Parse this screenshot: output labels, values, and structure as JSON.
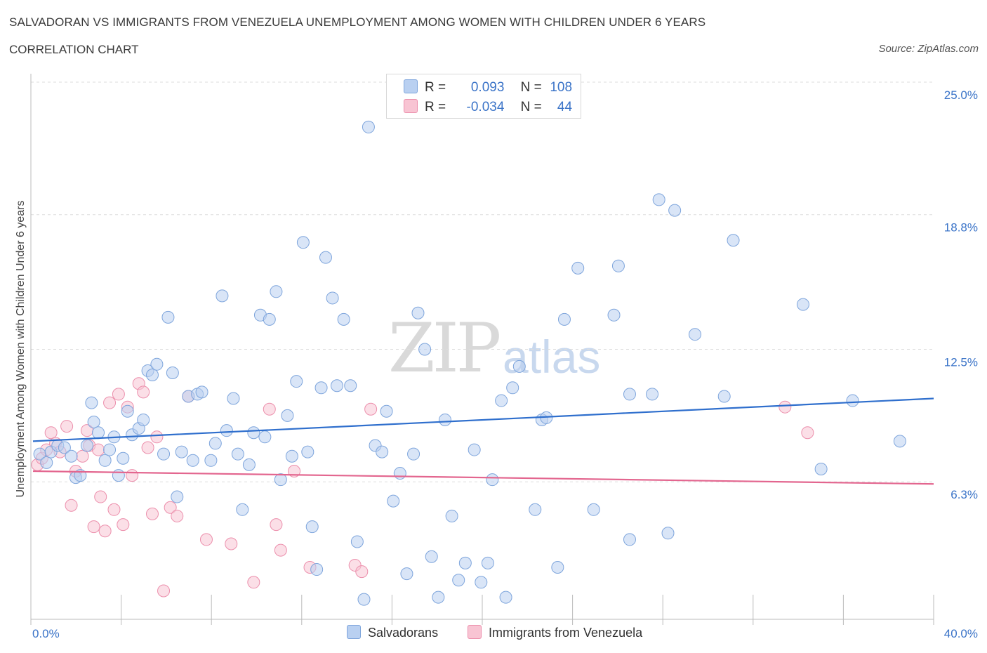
{
  "header": {
    "title": "SALVADORAN VS IMMIGRANTS FROM VENEZUELA UNEMPLOYMENT AMONG WOMEN WITH CHILDREN UNDER 6 YEARS",
    "subtitle": "CORRELATION CHART",
    "source": "Source: ZipAtlas.com"
  },
  "watermark": {
    "zip": "ZIP",
    "atlas": "atlas"
  },
  "legend": {
    "rows": [
      {
        "r_label": "R =",
        "r_value": "0.093",
        "n_label": "N =",
        "n_value": "108",
        "color": "#a8c6ef"
      },
      {
        "r_label": "R =",
        "r_value": "-0.034",
        "n_label": "N =",
        "n_value": "44",
        "color": "#f6b8cb"
      }
    ]
  },
  "bottom_legend": {
    "salvadorans": "Salvadorans",
    "venezuela": "Immigrants from Venezuela"
  },
  "colors": {
    "blue_fill": "#b9d0f1",
    "blue_stroke": "#7ea5dc",
    "blue_line": "#2f6fcd",
    "pink_fill": "#f8c4d3",
    "pink_stroke": "#ec8fac",
    "pink_line": "#e3668f",
    "tick_text": "#3b74c8"
  },
  "chart_data": {
    "type": "scatter",
    "xlabel": "",
    "ylabel": "Unemployment Among Women with Children Under 6 years",
    "xlim": [
      0,
      40
    ],
    "ylim": [
      0,
      25
    ],
    "x_tick_labels": [
      "0.0%",
      "40.0%"
    ],
    "y_ticks": [
      6.3,
      12.5,
      18.8,
      25.0
    ],
    "y_tick_labels": [
      "6.3%",
      "12.5%",
      "18.8%",
      "25.0%"
    ],
    "grid": true,
    "legend_position": "top-center",
    "series": [
      {
        "name": "Salvadorans",
        "r": 0.093,
        "n": 108,
        "trend": [
          [
            0,
            8.2
          ],
          [
            40,
            10.2
          ]
        ],
        "points": [
          [
            0.3,
            7.6
          ],
          [
            0.6,
            7.2
          ],
          [
            0.8,
            7.7
          ],
          [
            1.1,
            8.0
          ],
          [
            1.4,
            7.9
          ],
          [
            1.7,
            7.5
          ],
          [
            1.9,
            6.5
          ],
          [
            2.1,
            6.6
          ],
          [
            2.4,
            8.0
          ],
          [
            2.6,
            10.0
          ],
          [
            2.7,
            9.1
          ],
          [
            2.9,
            8.6
          ],
          [
            3.2,
            7.3
          ],
          [
            3.4,
            7.8
          ],
          [
            3.6,
            8.4
          ],
          [
            3.8,
            6.6
          ],
          [
            4.0,
            7.4
          ],
          [
            4.2,
            9.6
          ],
          [
            4.4,
            8.5
          ],
          [
            4.7,
            8.8
          ],
          [
            4.9,
            9.2
          ],
          [
            5.1,
            11.5
          ],
          [
            5.3,
            11.3
          ],
          [
            5.5,
            11.8
          ],
          [
            5.8,
            7.6
          ],
          [
            6.0,
            14.0
          ],
          [
            6.2,
            11.4
          ],
          [
            6.4,
            5.6
          ],
          [
            6.6,
            7.7
          ],
          [
            6.9,
            10.3
          ],
          [
            7.1,
            7.3
          ],
          [
            7.3,
            10.4
          ],
          [
            7.5,
            10.5
          ],
          [
            7.9,
            7.3
          ],
          [
            8.1,
            8.1
          ],
          [
            8.4,
            15.0
          ],
          [
            8.6,
            8.7
          ],
          [
            8.9,
            10.2
          ],
          [
            9.1,
            7.6
          ],
          [
            9.3,
            5.0
          ],
          [
            9.6,
            7.1
          ],
          [
            9.8,
            8.6
          ],
          [
            10.1,
            14.1
          ],
          [
            10.3,
            8.4
          ],
          [
            10.5,
            13.9
          ],
          [
            10.8,
            15.2
          ],
          [
            11.0,
            6.4
          ],
          [
            11.3,
            9.4
          ],
          [
            11.5,
            7.5
          ],
          [
            11.7,
            11.0
          ],
          [
            12.0,
            17.5
          ],
          [
            12.2,
            7.7
          ],
          [
            12.4,
            4.2
          ],
          [
            12.6,
            2.2
          ],
          [
            12.8,
            10.7
          ],
          [
            13.0,
            16.8
          ],
          [
            13.3,
            14.9
          ],
          [
            13.5,
            10.8
          ],
          [
            13.8,
            13.9
          ],
          [
            14.1,
            10.8
          ],
          [
            14.4,
            3.5
          ],
          [
            14.7,
            0.8
          ],
          [
            14.9,
            22.9
          ],
          [
            15.2,
            8.0
          ],
          [
            15.5,
            7.7
          ],
          [
            15.7,
            9.6
          ],
          [
            16.0,
            5.4
          ],
          [
            16.3,
            6.7
          ],
          [
            16.6,
            2.0
          ],
          [
            16.9,
            7.6
          ],
          [
            17.1,
            14.2
          ],
          [
            17.4,
            12.5
          ],
          [
            17.7,
            2.8
          ],
          [
            18.0,
            0.9
          ],
          [
            18.3,
            9.2
          ],
          [
            18.6,
            4.7
          ],
          [
            18.9,
            1.7
          ],
          [
            19.2,
            2.5
          ],
          [
            19.6,
            7.8
          ],
          [
            19.9,
            1.6
          ],
          [
            20.2,
            2.5
          ],
          [
            20.4,
            6.4
          ],
          [
            20.8,
            10.1
          ],
          [
            21.0,
            0.9
          ],
          [
            21.3,
            10.7
          ],
          [
            21.6,
            11.7
          ],
          [
            22.3,
            5.0
          ],
          [
            22.6,
            9.2
          ],
          [
            22.8,
            9.3
          ],
          [
            23.3,
            2.3
          ],
          [
            23.6,
            13.9
          ],
          [
            24.2,
            16.3
          ],
          [
            24.9,
            5.0
          ],
          [
            25.8,
            14.1
          ],
          [
            26.0,
            16.4
          ],
          [
            26.5,
            10.4
          ],
          [
            26.5,
            3.6
          ],
          [
            27.5,
            10.4
          ],
          [
            27.8,
            19.5
          ],
          [
            28.2,
            3.9
          ],
          [
            28.5,
            19.0
          ],
          [
            29.4,
            13.2
          ],
          [
            30.7,
            10.3
          ],
          [
            31.1,
            17.6
          ],
          [
            34.2,
            14.6
          ],
          [
            35.0,
            6.9
          ],
          [
            36.4,
            10.1
          ],
          [
            38.5,
            8.2
          ]
        ]
      },
      {
        "name": "Immigrants from Venezuela",
        "r": -0.034,
        "n": 44,
        "trend": [
          [
            0,
            6.8
          ],
          [
            40,
            6.2
          ]
        ],
        "points": [
          [
            0.2,
            7.1
          ],
          [
            0.4,
            7.4
          ],
          [
            0.6,
            7.8
          ],
          [
            0.8,
            8.6
          ],
          [
            1.0,
            8.1
          ],
          [
            1.2,
            7.7
          ],
          [
            1.5,
            8.9
          ],
          [
            1.7,
            5.2
          ],
          [
            1.9,
            6.8
          ],
          [
            2.2,
            7.5
          ],
          [
            2.4,
            8.7
          ],
          [
            2.5,
            8.0
          ],
          [
            2.7,
            4.2
          ],
          [
            2.9,
            7.8
          ],
          [
            3.0,
            5.6
          ],
          [
            3.2,
            4.0
          ],
          [
            3.4,
            10.0
          ],
          [
            3.6,
            5.0
          ],
          [
            3.8,
            10.4
          ],
          [
            4.0,
            4.3
          ],
          [
            4.2,
            9.8
          ],
          [
            4.4,
            6.6
          ],
          [
            4.7,
            10.9
          ],
          [
            4.9,
            10.5
          ],
          [
            5.1,
            7.9
          ],
          [
            5.3,
            4.8
          ],
          [
            5.5,
            8.4
          ],
          [
            5.8,
            1.2
          ],
          [
            6.1,
            5.1
          ],
          [
            6.4,
            4.7
          ],
          [
            6.9,
            10.3
          ],
          [
            7.7,
            3.6
          ],
          [
            8.8,
            3.4
          ],
          [
            9.8,
            1.6
          ],
          [
            10.5,
            9.7
          ],
          [
            10.8,
            4.3
          ],
          [
            11.0,
            3.1
          ],
          [
            11.6,
            6.8
          ],
          [
            12.3,
            2.3
          ],
          [
            14.3,
            2.4
          ],
          [
            14.6,
            2.1
          ],
          [
            15.0,
            9.7
          ],
          [
            33.4,
            9.8
          ],
          [
            34.4,
            8.6
          ]
        ]
      }
    ]
  }
}
